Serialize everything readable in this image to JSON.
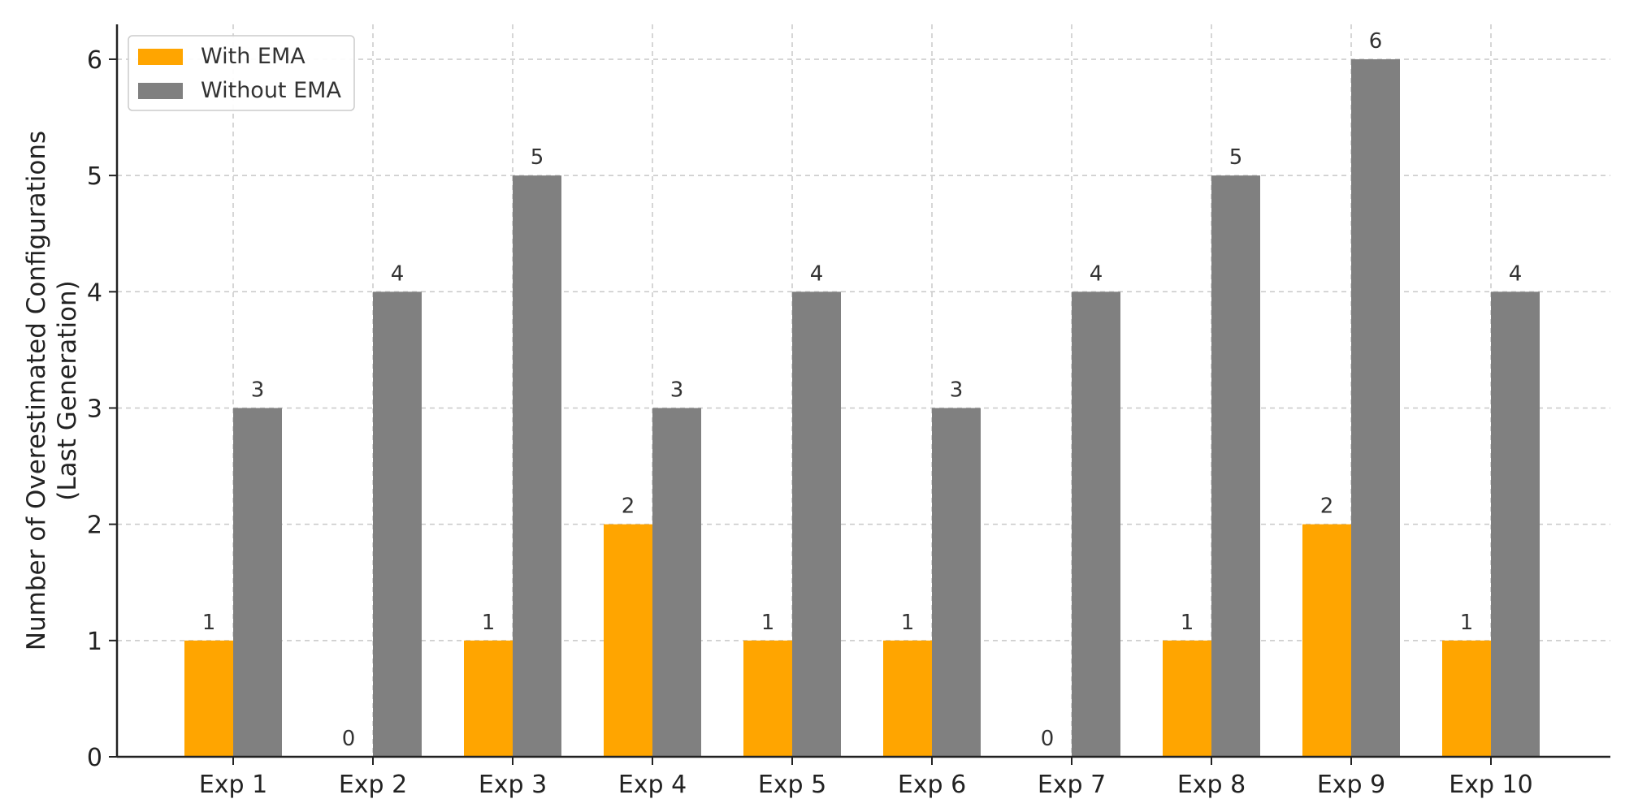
{
  "chart_data": {
    "type": "bar",
    "title": "",
    "xlabel": "",
    "ylabel": "Number of Overestimated Configurations\n(Last Generation)",
    "categories": [
      "Exp 1",
      "Exp 2",
      "Exp 3",
      "Exp 4",
      "Exp 5",
      "Exp 6",
      "Exp 7",
      "Exp 8",
      "Exp 9",
      "Exp 10"
    ],
    "series": [
      {
        "name": "With EMA",
        "color": "#FFA500",
        "values": [
          1,
          0,
          1,
          2,
          1,
          1,
          0,
          1,
          2,
          1
        ]
      },
      {
        "name": "Without EMA",
        "color": "#808080",
        "values": [
          3,
          4,
          5,
          3,
          4,
          3,
          4,
          5,
          6,
          4
        ]
      }
    ],
    "ylim": [
      0,
      6.3
    ],
    "yticks": [
      0,
      1,
      2,
      3,
      4,
      5,
      6
    ],
    "grid": true,
    "legend_position": "top-left",
    "data_labels": true
  }
}
